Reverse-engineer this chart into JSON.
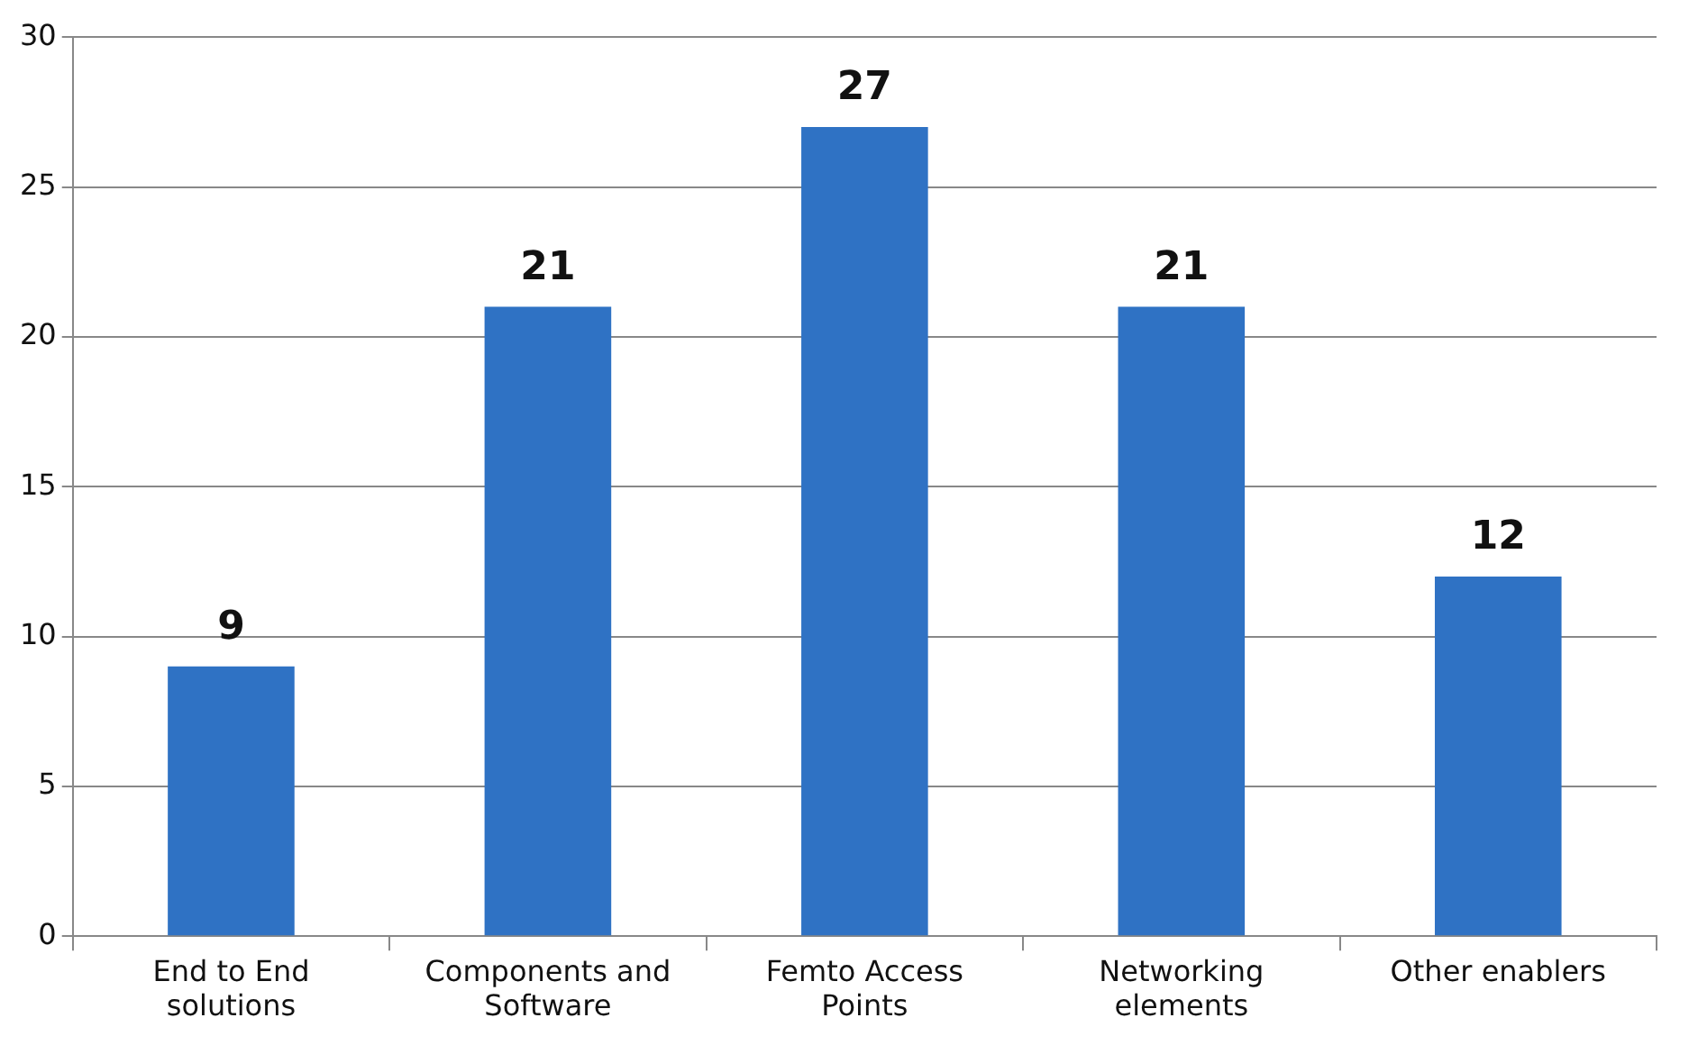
{
  "chart_data": {
    "type": "bar",
    "categories": [
      "End to End solutions",
      "Components and Software",
      "Femto Access Points",
      "Networking elements",
      "Other enablers"
    ],
    "values": [
      9,
      21,
      27,
      21,
      12
    ],
    "color": "#2f72c4",
    "ylim": [
      0,
      30
    ],
    "yticks": [
      0,
      5,
      10,
      15,
      20,
      25,
      30
    ],
    "grid": "y",
    "data_labels": true,
    "legend": false
  }
}
